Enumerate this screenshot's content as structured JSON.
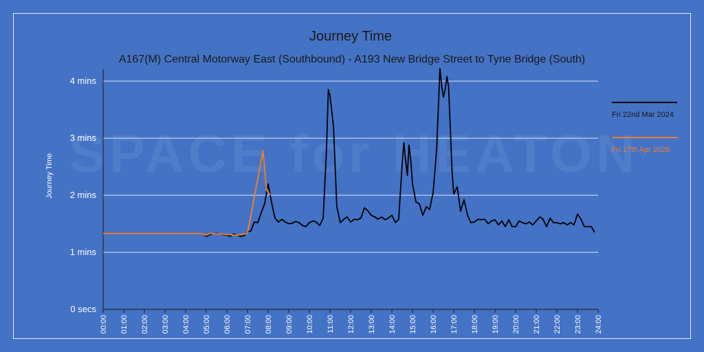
{
  "chart_data": {
    "type": "line",
    "title": "Journey Time",
    "subtitle": "A167(M) Central Motorway East (Southbound) - A193 New Bridge Street to Tyne Bridge (South)",
    "ylabel": "Journey Time",
    "xlabel": "",
    "ylim": [
      0,
      4.2
    ],
    "x_ticks": [
      "00:00",
      "01:00",
      "02:00",
      "03:00",
      "04:00",
      "05:00",
      "06:00",
      "07:00",
      "08:00",
      "09:00",
      "10:00",
      "11:00",
      "12:00",
      "13:00",
      "14:00",
      "15:00",
      "16:00",
      "17:00",
      "18:00",
      "19:00",
      "20:00",
      "21:00",
      "22:00",
      "23:00",
      "24:00"
    ],
    "y_ticks": [
      {
        "value": 0,
        "label": "0 secs"
      },
      {
        "value": 1,
        "label": "1 mins"
      },
      {
        "value": 2,
        "label": "2 mins"
      },
      {
        "value": 3,
        "label": "3 mins"
      },
      {
        "value": 4,
        "label": "4 mins"
      }
    ],
    "grid": true,
    "legend_position": "right",
    "watermark": "SPACE for HEATON",
    "series": [
      {
        "name": "Fri 22nd Mar 2024",
        "color": "#000000",
        "x": [
          0,
          4.83,
          5,
          5.17,
          5.33,
          5.5,
          5.67,
          5.83,
          6,
          6.17,
          6.33,
          6.5,
          6.67,
          6.83,
          7,
          7.17,
          7.33,
          7.5,
          7.67,
          7.83,
          8,
          8.17,
          8.33,
          8.5,
          8.67,
          8.83,
          9,
          9.17,
          9.33,
          9.5,
          9.67,
          9.83,
          10,
          10.17,
          10.33,
          10.5,
          10.67,
          10.83,
          10.92,
          11,
          11.17,
          11.33,
          11.5,
          11.67,
          11.83,
          12,
          12.17,
          12.33,
          12.5,
          12.67,
          12.83,
          13,
          13.17,
          13.33,
          13.5,
          13.67,
          13.83,
          14,
          14.17,
          14.33,
          14.5,
          14.58,
          14.67,
          14.75,
          14.83,
          14.92,
          15,
          15.17,
          15.33,
          15.5,
          15.67,
          15.83,
          16,
          16.17,
          16.33,
          16.42,
          16.5,
          16.58,
          16.67,
          16.75,
          16.83,
          16.92,
          17,
          17.17,
          17.33,
          17.5,
          17.67,
          17.83,
          18,
          18.17,
          18.33,
          18.5,
          18.67,
          18.83,
          19,
          19.17,
          19.33,
          19.5,
          19.67,
          19.83,
          20,
          20.17,
          20.33,
          20.5,
          20.67,
          20.83,
          21,
          21.17,
          21.33,
          21.5,
          21.67,
          21.83,
          22,
          22.17,
          22.33,
          22.5,
          22.67,
          22.83,
          23,
          23.17,
          23.33,
          23.5,
          23.67,
          23.83
        ],
        "y": [
          1.33,
          1.33,
          1.28,
          1.31,
          1.33,
          1.33,
          1.32,
          1.31,
          1.3,
          1.28,
          1.32,
          1.3,
          1.28,
          1.29,
          1.35,
          1.38,
          1.53,
          1.52,
          1.7,
          1.85,
          2.2,
          1.87,
          1.6,
          1.53,
          1.58,
          1.53,
          1.5,
          1.51,
          1.54,
          1.52,
          1.47,
          1.45,
          1.52,
          1.55,
          1.53,
          1.47,
          1.6,
          2.8,
          3.85,
          3.75,
          3.2,
          1.8,
          1.52,
          1.58,
          1.62,
          1.53,
          1.58,
          1.57,
          1.6,
          1.78,
          1.73,
          1.65,
          1.62,
          1.58,
          1.62,
          1.57,
          1.6,
          1.65,
          1.52,
          1.58,
          2.55,
          2.92,
          2.6,
          2.35,
          2.88,
          2.6,
          2.2,
          1.88,
          1.85,
          1.65,
          1.8,
          1.75,
          2.05,
          2.8,
          4.22,
          3.9,
          3.72,
          3.85,
          4.08,
          3.9,
          3.2,
          2.4,
          2.02,
          2.15,
          1.72,
          1.92,
          1.65,
          1.52,
          1.53,
          1.58,
          1.57,
          1.58,
          1.5,
          1.55,
          1.57,
          1.48,
          1.55,
          1.45,
          1.57,
          1.45,
          1.45,
          1.55,
          1.52,
          1.5,
          1.53,
          1.48,
          1.55,
          1.62,
          1.58,
          1.45,
          1.6,
          1.52,
          1.52,
          1.5,
          1.52,
          1.48,
          1.52,
          1.48,
          1.67,
          1.58,
          1.45,
          1.45,
          1.45,
          1.35
        ]
      },
      {
        "name": "Fri 17th Apr 2026",
        "color": "#ed7d31",
        "x": [
          0,
          4.8,
          5,
          5.17,
          5.33,
          5.5,
          5.67,
          5.83,
          6,
          6.17,
          6.33,
          6.5,
          6.67,
          6.83,
          7,
          7.75,
          7.92,
          8.1
        ],
        "y": [
          1.33,
          1.33,
          1.3,
          1.33,
          1.33,
          1.32,
          1.32,
          1.32,
          1.31,
          1.31,
          1.3,
          1.3,
          1.31,
          1.32,
          1.33,
          2.78,
          2.1,
          2.0
        ]
      }
    ]
  }
}
